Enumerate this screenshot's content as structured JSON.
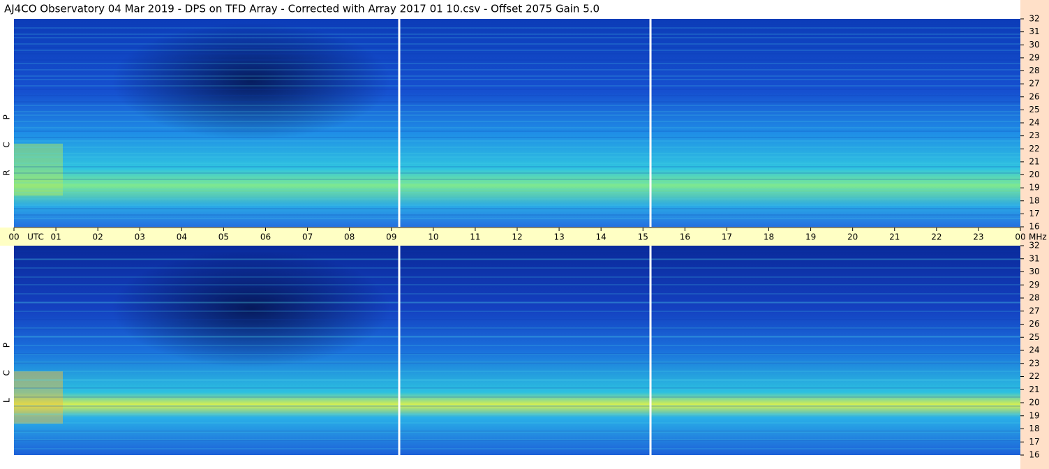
{
  "chart_data": {
    "type": "spectrogram",
    "title": "AJ4CO Observatory  04 Mar 2019  -  DPS on TFD Array  -  Corrected with Array 2017 01 10.csv  -  Offset 2075  Gain 5.0",
    "xlabel": "UTC",
    "yunit": "MHz",
    "xlim": [
      0,
      24
    ],
    "xticks": [
      {
        "value": 0,
        "label": "00"
      },
      {
        "value": 1,
        "label": "01"
      },
      {
        "value": 2,
        "label": "02"
      },
      {
        "value": 3,
        "label": "03"
      },
      {
        "value": 4,
        "label": "04"
      },
      {
        "value": 5,
        "label": "05"
      },
      {
        "value": 6,
        "label": "06"
      },
      {
        "value": 7,
        "label": "07"
      },
      {
        "value": 8,
        "label": "08"
      },
      {
        "value": 9,
        "label": "09"
      },
      10,
      11,
      12,
      13,
      14,
      15,
      16,
      17,
      18,
      19,
      20,
      21,
      22,
      23,
      {
        "value": 24,
        "label": "00"
      }
    ],
    "ylim": [
      16,
      32
    ],
    "yticks": [
      16,
      17,
      18,
      19,
      20,
      21,
      22,
      23,
      24,
      25,
      26,
      27,
      28,
      29,
      30,
      31,
      32
    ],
    "panels": [
      {
        "label": "R C P"
      },
      {
        "label": "L C P"
      }
    ]
  }
}
